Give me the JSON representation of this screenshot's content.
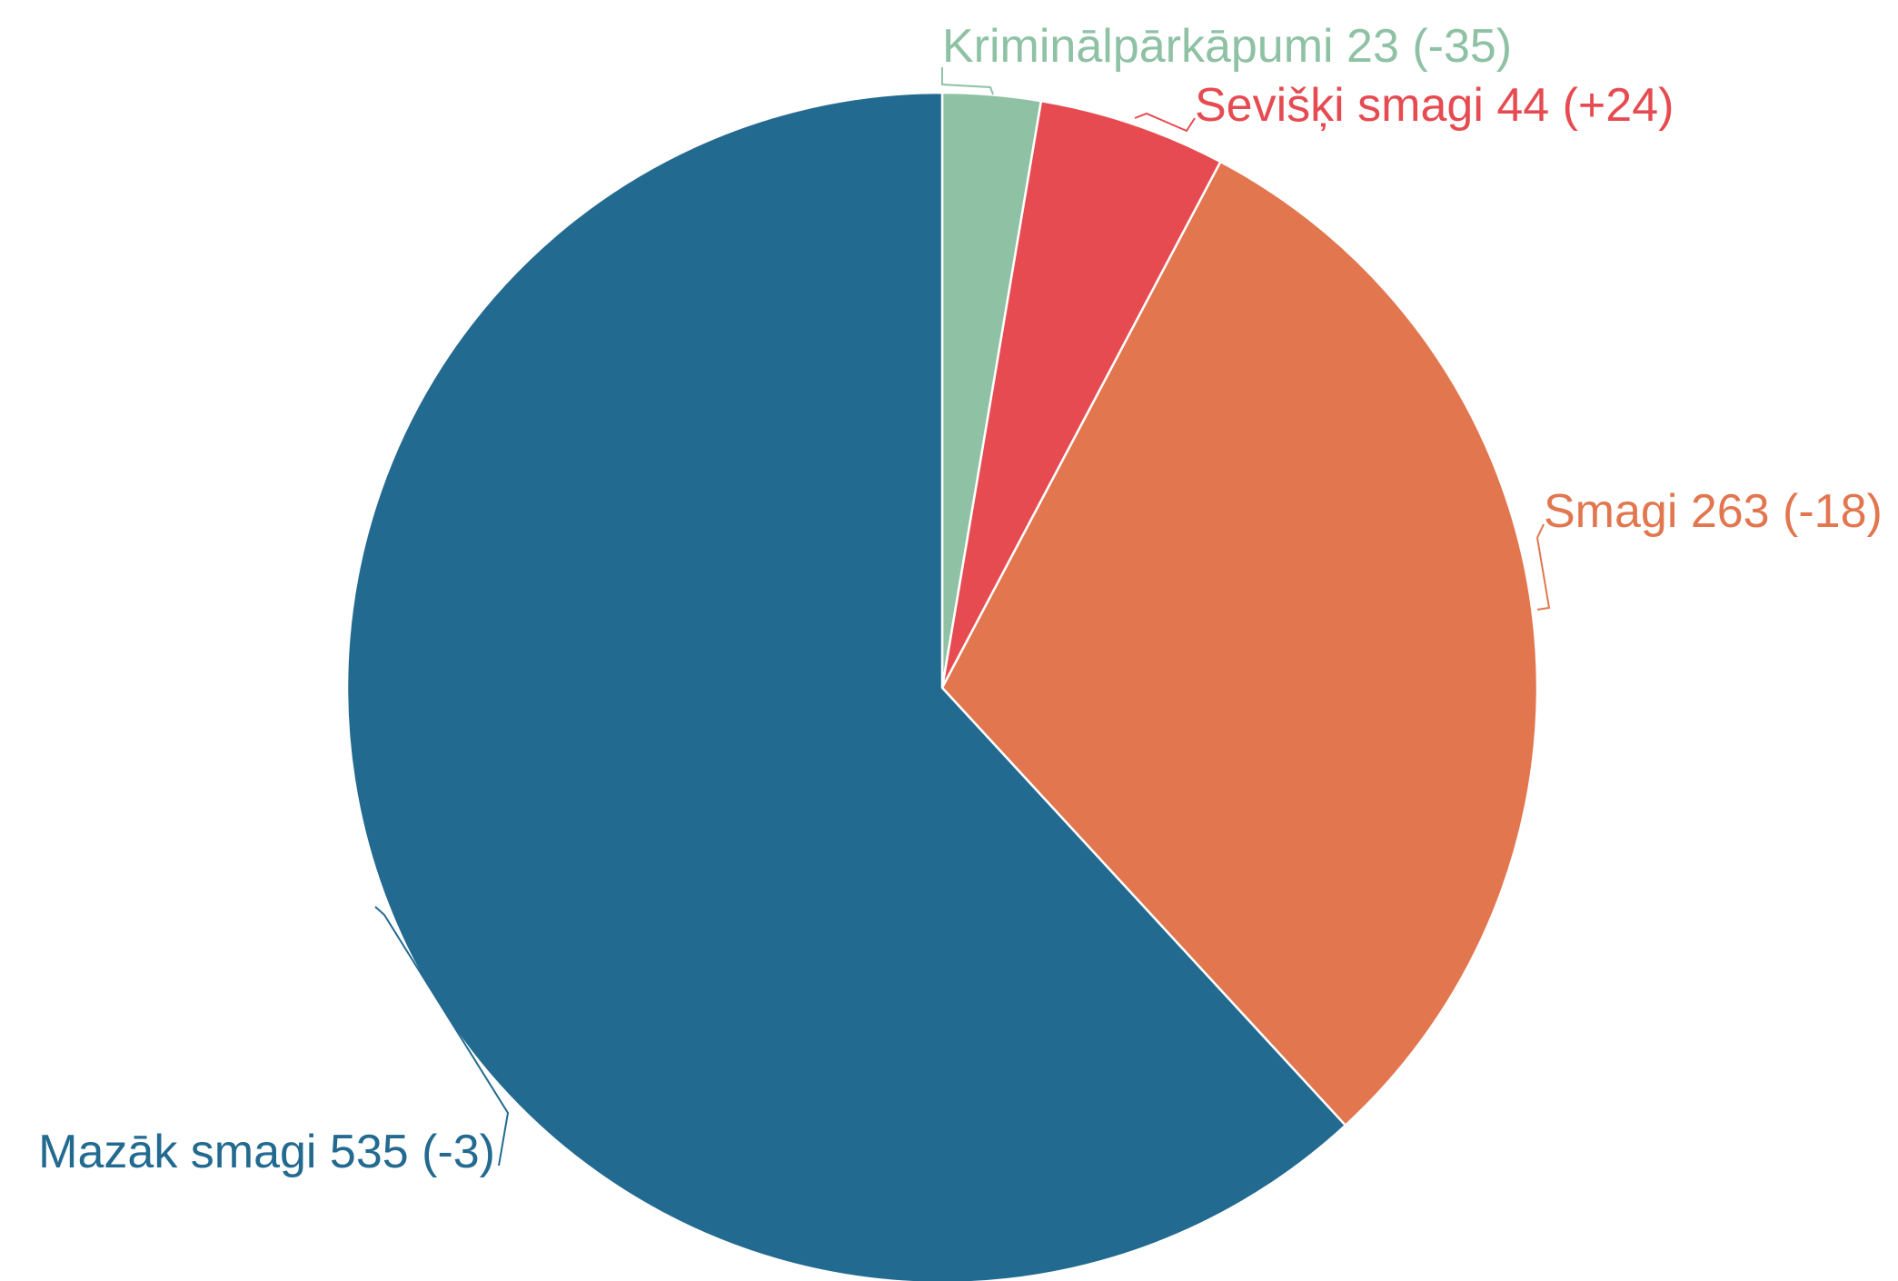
{
  "chart_data": {
    "type": "pie",
    "start_angle_deg": 0,
    "direction": "clockwise",
    "slices": [
      {
        "name": "Kriminālpārkāpumi",
        "value": 23,
        "change": "-35",
        "label": "Kriminālpārkāpumi 23 (-35)",
        "color": "#8fc1a5"
      },
      {
        "name": "Sevišķi smagi",
        "value": 44,
        "change": "+24",
        "label": "Sevišķi smagi 44 (+24)",
        "color": "#e64b51"
      },
      {
        "name": "Smagi",
        "value": 263,
        "change": "-18",
        "label": "Smagi 263 (-18)",
        "color": "#e2764f"
      },
      {
        "name": "Mazāk smagi",
        "value": 535,
        "change": "-3",
        "label": "Mazāk smagi 535 (-3)",
        "color": "#236a90"
      }
    ]
  }
}
